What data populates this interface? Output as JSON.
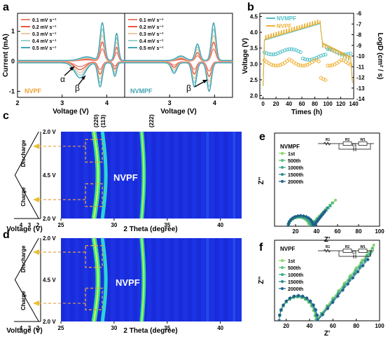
{
  "panel_labels": {
    "a": "a",
    "b": "b",
    "c": "c",
    "d": "d",
    "e": "e",
    "f": "f"
  },
  "chart_data": [
    {
      "panel": "a",
      "type": "line",
      "ylabel": "Current (mA)",
      "xlabel": "Voltage (V)",
      "ylim": [
        -1.2,
        1.6
      ],
      "yticks": [
        -1,
        0,
        1
      ],
      "subplots": [
        {
          "name": "NVPF",
          "xlim": [
            2.0,
            4.4
          ],
          "xticks": [
            2,
            3,
            4
          ],
          "anodic_peaks": [
            3.9,
            4.22
          ],
          "cathodic_peaks": [
            3.4,
            3.95
          ],
          "peak_labels": [
            "α",
            "β"
          ],
          "series": [
            {
              "name": "0.1 mV s⁻¹",
              "color": "#f08070",
              "scale": 0.32
            },
            {
              "name": "0.2 mV s⁻¹",
              "color": "#e8573e",
              "scale": 0.5
            },
            {
              "name": "0.3 mV s⁻¹",
              "color": "#f0c8a0",
              "scale": 0.68
            },
            {
              "name": "0.4 mV s⁻¹",
              "color": "#9ed0cf",
              "scale": 0.84
            },
            {
              "name": "0.5 mV s⁻¹",
              "color": "#3fa3b3",
              "scale": 1.0
            }
          ]
        },
        {
          "name": "NVMPF",
          "xlim": [
            2.0,
            4.4
          ],
          "xticks": [
            3,
            4
          ],
          "anodic_peaks": [
            3.6,
            3.98
          ],
          "cathodic_peaks": [
            3.1,
            3.55,
            3.88
          ],
          "peak_labels": [
            "β"
          ],
          "series": [
            {
              "name": "0.1 mV s⁻¹",
              "color": "#f08070",
              "scale": 0.32
            },
            {
              "name": "0.2 mV s⁻¹",
              "color": "#e8573e",
              "scale": 0.5
            },
            {
              "name": "0.3 mV s⁻¹",
              "color": "#f0c8a0",
              "scale": 0.68
            },
            {
              "name": "0.4 mV s⁻¹",
              "color": "#9ed0cf",
              "scale": 0.84
            },
            {
              "name": "0.5 mV s⁻¹",
              "color": "#3fa3b3",
              "scale": 1.0
            }
          ]
        }
      ]
    },
    {
      "panel": "b",
      "type": "line",
      "xlabel": "Times (h)",
      "ylabel": "Voltage (V)",
      "y2label": "LogD (cm² / s)",
      "xlim": [
        -5,
        140
      ],
      "xticks": [
        0,
        20,
        40,
        60,
        80,
        100,
        120,
        140
      ],
      "ylim": [
        1.9,
        4.6
      ],
      "yticks": [
        2.0,
        2.5,
        3.0,
        3.5,
        4.0,
        4.5
      ],
      "y2lim": [
        -14,
        -6
      ],
      "y2ticks": [
        -6,
        -7,
        -8,
        -9,
        -10,
        -11,
        -12,
        -13,
        -14
      ],
      "series": [
        {
          "name": "NVMPF",
          "color": "#50c0c8"
        },
        {
          "name": "NVPF",
          "color": "#f0b030"
        }
      ]
    },
    {
      "panel": "c",
      "type": "heatmap",
      "xlabel": "2 Theta (degree)",
      "xlim": [
        25,
        42
      ],
      "xticks": [
        25,
        30,
        35,
        40
      ],
      "peak_labels": [
        "(220)",
        "(113)",
        "(222)"
      ],
      "peak_positions": [
        28.1,
        28.9,
        32.6
      ],
      "material": "NVPF",
      "side_xlabel": "Voltage (V)",
      "side_xticks": [
        "4",
        "3",
        "2"
      ],
      "side_labels": [
        "2.0 V",
        "4.5 V",
        "2.0 V"
      ],
      "stage_labels": [
        "Discharge",
        "Charge"
      ]
    },
    {
      "panel": "d",
      "type": "heatmap",
      "xlabel": "2 Theta (degree)",
      "xlim": [
        25,
        42
      ],
      "xticks": [
        25,
        30,
        35,
        40
      ],
      "peak_positions": [
        28.1,
        28.9,
        32.6
      ],
      "material": "NVPF",
      "side_xlabel": "Voltage (V)",
      "side_xticks": [
        "4",
        "3",
        "2"
      ],
      "side_labels": [
        "2.0 V",
        "4.5 V",
        "2.0 V"
      ],
      "stage_labels": [
        "Discharge",
        "Charge"
      ]
    },
    {
      "panel": "e",
      "type": "scatter",
      "title": "NVMPF",
      "xlabel": "Z'",
      "ylabel": "Z''",
      "xlim": [
        0,
        100
      ],
      "xticks": [
        20,
        40,
        60,
        80,
        100
      ],
      "ylim": [
        0,
        100
      ],
      "circuit_labels": [
        "R1",
        "R2",
        "W1",
        "C1"
      ],
      "series": [
        {
          "name": "1st",
          "color": "#8bd36e",
          "marker": "circle",
          "R0": 13,
          "Rct": 20,
          "tailEnd": [
            58,
            28
          ]
        },
        {
          "name": "500th",
          "color": "#5ac07a",
          "marker": "square",
          "R0": 13,
          "Rct": 21,
          "tailEnd": [
            55,
            25
          ]
        },
        {
          "name": "1000th",
          "color": "#3aa58a",
          "marker": "triangle",
          "R0": 13,
          "Rct": 22,
          "tailEnd": [
            53,
            22
          ]
        },
        {
          "name": "1500th",
          "color": "#2d8a8a",
          "marker": "triangle-down",
          "R0": 13,
          "Rct": 23,
          "tailEnd": [
            50,
            19
          ]
        },
        {
          "name": "2000th",
          "color": "#1f5f8a",
          "marker": "diamond",
          "R0": 13,
          "Rct": 24,
          "tailEnd": [
            48,
            16
          ]
        }
      ]
    },
    {
      "panel": "f",
      "type": "scatter",
      "title": "NVPF",
      "xlabel": "Z'",
      "ylabel": "Z''",
      "xlim": [
        10,
        100
      ],
      "xticks": [
        20,
        40,
        60,
        80,
        100
      ],
      "ylim": [
        0,
        50
      ],
      "circuit_labels": [
        "R1",
        "R2",
        "W1",
        "C1"
      ],
      "series": [
        {
          "name": "1st",
          "color": "#8bd36e",
          "marker": "circle",
          "R0": 14,
          "Rct": 31,
          "tailEnd": [
            95,
            47
          ]
        },
        {
          "name": "500th",
          "color": "#5ac07a",
          "marker": "square",
          "R0": 14,
          "Rct": 31.5,
          "tailEnd": [
            94,
            45
          ]
        },
        {
          "name": "1000th",
          "color": "#3aa58a",
          "marker": "triangle",
          "R0": 14,
          "Rct": 32,
          "tailEnd": [
            93,
            43
          ]
        },
        {
          "name": "1500th",
          "color": "#2d8a8a",
          "marker": "triangle-down",
          "R0": 14,
          "Rct": 32.5,
          "tailEnd": [
            92,
            41
          ]
        },
        {
          "name": "2000th",
          "color": "#1f5f8a",
          "marker": "diamond",
          "R0": 14,
          "Rct": 33,
          "tailEnd": [
            90,
            38
          ]
        }
      ]
    }
  ]
}
